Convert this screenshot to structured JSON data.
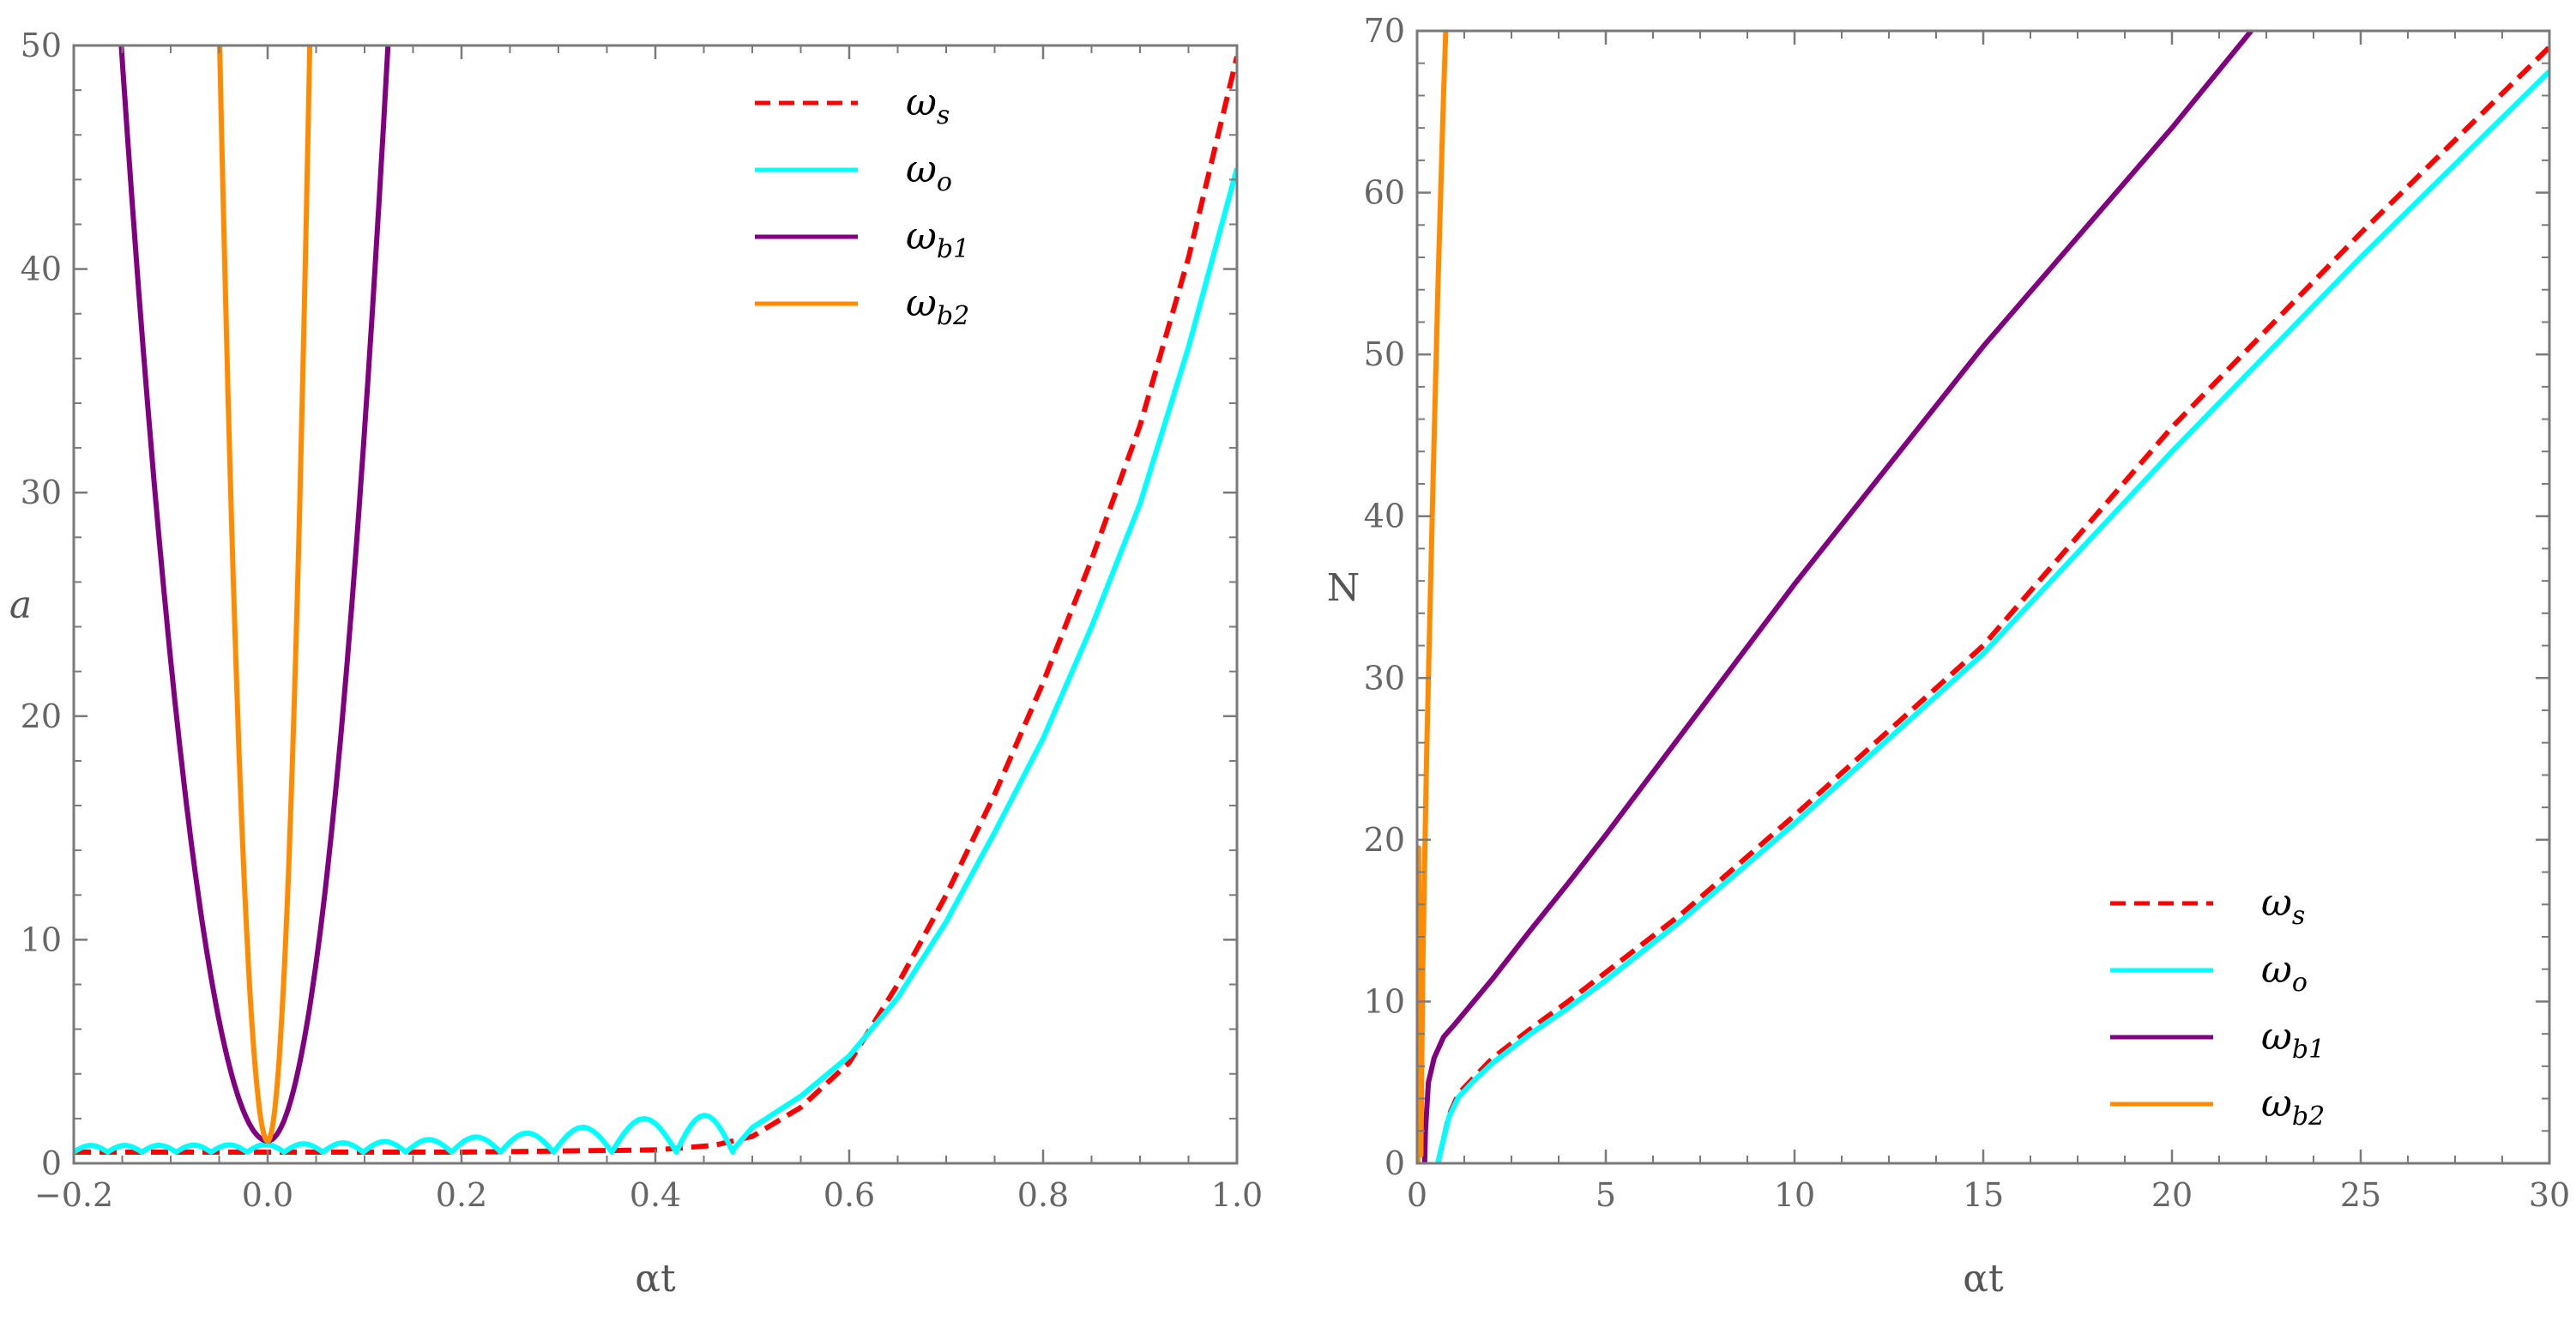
{
  "chart_data": [
    {
      "type": "line",
      "panel": "left",
      "xlabel": "αt",
      "ylabel": "a",
      "xlim": [
        -0.2,
        1.0
      ],
      "ylim": [
        0,
        50
      ],
      "xticks": [
        -0.2,
        0.0,
        0.2,
        0.4,
        0.6,
        0.8,
        1.0
      ],
      "xtick_labels": [
        "−0.2",
        "0.0",
        "0.2",
        "0.4",
        "0.6",
        "0.8",
        "1.0"
      ],
      "yticks": [
        0,
        10,
        20,
        30,
        40,
        50
      ],
      "ytick_labels": [
        "0",
        "10",
        "20",
        "30",
        "40",
        "50"
      ],
      "grid": false,
      "legend_position": "top-right",
      "series": [
        {
          "name": "ω_s",
          "label_main": "ω",
          "label_sub": "s",
          "color": "#ff0000",
          "style": "dashed",
          "points": [
            [
              -0.2,
              0.5
            ],
            [
              0.0,
              0.5
            ],
            [
              0.2,
              0.5
            ],
            [
              0.4,
              0.6
            ],
            [
              0.46,
              0.8
            ],
            [
              0.5,
              1.2
            ],
            [
              0.55,
              2.5
            ],
            [
              0.6,
              4.5
            ],
            [
              0.65,
              8.0
            ],
            [
              0.7,
              12.0
            ],
            [
              0.75,
              16.5
            ],
            [
              0.8,
              21.5
            ],
            [
              0.85,
              27.0
            ],
            [
              0.9,
              33.0
            ],
            [
              0.95,
              40.5
            ],
            [
              1.0,
              49.5
            ]
          ]
        },
        {
          "name": "ω_o",
          "label_main": "ω",
          "label_sub": "o",
          "color": "#00ffff",
          "style": "solid",
          "osc": {
            "start": -0.2,
            "end": 0.48,
            "base": 0.5,
            "spacing0": 0.035,
            "spacing_growth": 1.35,
            "amp0": 0.3,
            "amp_growth": 3.0
          },
          "points": [
            [
              0.48,
              0.6
            ],
            [
              0.5,
              1.6
            ],
            [
              0.55,
              3.0
            ],
            [
              0.6,
              4.8
            ],
            [
              0.65,
              7.4
            ],
            [
              0.7,
              10.8
            ],
            [
              0.75,
              14.8
            ],
            [
              0.8,
              19.0
            ],
            [
              0.85,
              24.0
            ],
            [
              0.9,
              29.5
            ],
            [
              0.95,
              36.5
            ],
            [
              1.0,
              44.5
            ]
          ]
        },
        {
          "name": "ω_b1",
          "label_main": "ω",
          "label_sub": "b1",
          "color": "#800080",
          "style": "solid",
          "parabola": {
            "vertex_x": 0.0,
            "vertex_y": 1.0,
            "a_right": 3180,
            "a_left": 2150
          }
        },
        {
          "name": "ω_b2",
          "label_main": "ω",
          "label_sub": "b2",
          "color": "#ff8c00",
          "style": "solid",
          "parabola": {
            "vertex_x": 0.0,
            "vertex_y": 1.0,
            "a_right": 26000,
            "a_left": 20000
          }
        }
      ]
    },
    {
      "type": "line",
      "panel": "right",
      "xlabel": "αt",
      "ylabel": "N",
      "xlim": [
        0,
        30
      ],
      "ylim": [
        0,
        70
      ],
      "xticks": [
        0,
        5,
        10,
        15,
        20,
        25,
        30
      ],
      "xtick_labels": [
        "0",
        "5",
        "10",
        "15",
        "20",
        "25",
        "30"
      ],
      "yticks": [
        0,
        10,
        20,
        30,
        40,
        50,
        60,
        70
      ],
      "ytick_labels": [
        "0",
        "10",
        "20",
        "30",
        "40",
        "50",
        "60",
        "70"
      ],
      "grid": false,
      "legend_position": "bottom-right",
      "series": [
        {
          "name": "ω_s",
          "label_main": "ω",
          "label_sub": "s",
          "color": "#ff0000",
          "style": "dashed",
          "points": [
            [
              0.55,
              0
            ],
            [
              0.7,
              1.5
            ],
            [
              0.85,
              3.0
            ],
            [
              1.1,
              4.3
            ],
            [
              1.5,
              5.3
            ],
            [
              2,
              6.5
            ],
            [
              3,
              8.3
            ],
            [
              4,
              10.0
            ],
            [
              5,
              11.8
            ],
            [
              7,
              15.4
            ],
            [
              10,
              21.5
            ],
            [
              15,
              32.0
            ],
            [
              20,
              45.5
            ],
            [
              25,
              57.5
            ],
            [
              30,
              69.0
            ]
          ]
        },
        {
          "name": "ω_o",
          "label_main": "ω",
          "label_sub": "o",
          "color": "#00ffff",
          "style": "solid",
          "points": [
            [
              0.55,
              0
            ],
            [
              0.7,
              1.5
            ],
            [
              0.85,
              2.9
            ],
            [
              1.1,
              4.1
            ],
            [
              1.5,
              5.1
            ],
            [
              2,
              6.2
            ],
            [
              3,
              8.0
            ],
            [
              4,
              9.6
            ],
            [
              5,
              11.3
            ],
            [
              7,
              15.0
            ],
            [
              10,
              21.0
            ],
            [
              15,
              31.5
            ],
            [
              20,
              44.0
            ],
            [
              25,
              56.0
            ],
            [
              30,
              67.5
            ]
          ]
        },
        {
          "name": "ω_b1",
          "label_main": "ω",
          "label_sub": "b1",
          "color": "#800080",
          "style": "solid",
          "points": [
            [
              0.2,
              0
            ],
            [
              0.22,
              2.0
            ],
            [
              0.3,
              5.0
            ],
            [
              0.45,
              6.5
            ],
            [
              0.7,
              7.8
            ],
            [
              1,
              8.6
            ],
            [
              2,
              11.4
            ],
            [
              3,
              14.4
            ],
            [
              4,
              17.3
            ],
            [
              5,
              20.3
            ],
            [
              7,
              26.5
            ],
            [
              10,
              35.8
            ],
            [
              15,
              50.5
            ],
            [
              20,
              64.0
            ],
            [
              22.1,
              70.0
            ]
          ]
        },
        {
          "name": "ω_b2",
          "label_main": "ω",
          "label_sub": "b2",
          "color": "#ff8c00",
          "style": "solid",
          "points": [
            [
              0.02,
              0
            ],
            [
              0.04,
              19.5
            ],
            [
              0.07,
              10.0
            ],
            [
              0.1,
              0.5
            ],
            [
              0.15,
              12.0
            ],
            [
              0.25,
              25.0
            ],
            [
              0.4,
              40.0
            ],
            [
              0.55,
              54.0
            ],
            [
              0.7,
              66.0
            ],
            [
              0.76,
              70.0
            ]
          ]
        }
      ]
    }
  ]
}
